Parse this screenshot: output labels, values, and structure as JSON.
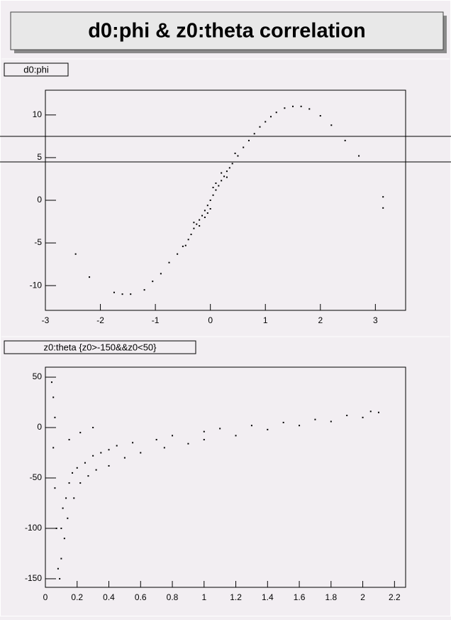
{
  "title": "d0:phi & z0:theta correlation",
  "chart_data": [
    {
      "type": "scatter",
      "title": "d0:phi",
      "color": "#000000",
      "x": [
        -2.45,
        -2.2,
        -1.75,
        -1.6,
        -1.45,
        -1.2,
        -1.05,
        -0.9,
        -0.75,
        -0.6,
        -0.5,
        -0.45,
        -0.4,
        -0.35,
        -0.3,
        -0.3,
        -0.25,
        -0.2,
        -0.2,
        -0.15,
        -0.1,
        -0.1,
        -0.05,
        -0.05,
        0,
        0,
        0.05,
        0.05,
        0.1,
        0.1,
        0.15,
        0.2,
        0.2,
        0.25,
        0.3,
        0.3,
        0.35,
        0.4,
        0.45,
        0.5,
        0.6,
        0.7,
        0.8,
        0.9,
        1.0,
        1.1,
        1.2,
        1.35,
        1.5,
        1.65,
        1.8,
        2.0,
        2.2,
        2.45,
        2.7,
        3.14,
        3.14
      ],
      "values": [
        -6.3,
        -9.0,
        -10.8,
        -11.0,
        -11.0,
        -10.5,
        -9.5,
        -8.6,
        -7.3,
        -6.3,
        -5.4,
        -5.3,
        -4.6,
        -4.0,
        -3.3,
        -2.6,
        -2.8,
        -2.3,
        -3.0,
        -1.8,
        -1.2,
        -2.0,
        -0.6,
        -1.5,
        0,
        -1.0,
        0.6,
        1.5,
        1.2,
        2.0,
        1.7,
        2.3,
        3.2,
        2.8,
        3.4,
        2.7,
        3.8,
        4.3,
        5.5,
        5.2,
        6.2,
        7.0,
        7.8,
        8.6,
        9.2,
        9.8,
        10.3,
        10.8,
        11.0,
        11.0,
        10.7,
        9.9,
        8.8,
        7.0,
        5.2,
        0.4,
        -0.9
      ],
      "xlim": [
        -3,
        3.55
      ],
      "ylim": [
        -12.9,
        12.9
      ],
      "xticks": [
        -3,
        -2,
        -1,
        0,
        1,
        2,
        3
      ],
      "yticks": [
        -10,
        -5,
        0,
        5,
        10
      ]
    },
    {
      "type": "scatter",
      "title": "z0:theta {z0>-150&&z0<50}",
      "color": "#000000",
      "x": [
        0.04,
        0.05,
        0.06,
        0.05,
        0.06,
        0.07,
        0.08,
        0.09,
        0.1,
        0.1,
        0.11,
        0.12,
        0.13,
        0.15,
        0.14,
        0.17,
        0.18,
        0.2,
        0.22,
        0.25,
        0.27,
        0.3,
        0.32,
        0.35,
        0.4,
        0.4,
        0.45,
        0.5,
        0.55,
        0.6,
        0.7,
        0.75,
        0.8,
        0.9,
        1.0,
        1.0,
        1.1,
        1.2,
        1.3,
        1.4,
        1.5,
        1.6,
        1.7,
        1.8,
        1.9,
        2.0,
        2.05,
        2.1,
        0.22,
        0.15,
        0.3
      ],
      "values": [
        45,
        30,
        10,
        -20,
        -60,
        -100,
        -140,
        -150,
        -130,
        -100,
        -80,
        -110,
        -70,
        -55,
        -90,
        -45,
        -70,
        -40,
        -55,
        -35,
        -48,
        -28,
        -42,
        -25,
        -22,
        -38,
        -18,
        -30,
        -15,
        -25,
        -12,
        -20,
        -8,
        -16,
        -4,
        -12,
        -1,
        -8,
        2,
        -2,
        5,
        2,
        8,
        6,
        12,
        10,
        16,
        15,
        -5,
        -12,
        0
      ],
      "xlim": [
        0,
        2.27
      ],
      "ylim": [
        -158.5,
        59.9
      ],
      "xticks": [
        0,
        0.2,
        0.4,
        0.6,
        0.8,
        1,
        1.2,
        1.4,
        1.6,
        1.8,
        2,
        2.2
      ],
      "yticks": [
        -150,
        -100,
        -50,
        0,
        50
      ]
    }
  ]
}
